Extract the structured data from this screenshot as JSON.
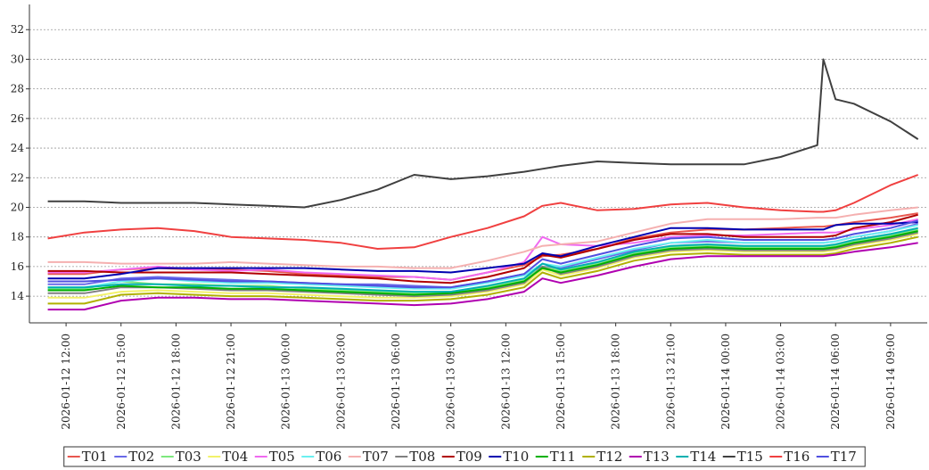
{
  "chart_data": {
    "type": "line",
    "x": [
      "2026-01-12 11:00",
      "2026-01-12 13:00",
      "2026-01-12 15:00",
      "2026-01-12 17:00",
      "2026-01-12 19:00",
      "2026-01-12 21:00",
      "2026-01-12 23:00",
      "2026-01-13 01:00",
      "2026-01-13 03:00",
      "2026-01-13 05:00",
      "2026-01-13 07:00",
      "2026-01-13 09:00",
      "2026-01-13 11:00",
      "2026-01-13 13:00",
      "2026-01-13 14:00",
      "2026-01-13 15:00",
      "2026-01-13 17:00",
      "2026-01-13 19:00",
      "2026-01-13 21:00",
      "2026-01-13 23:00",
      "2026-01-14 01:00",
      "2026-01-14 03:00",
      "2026-01-14 05:00",
      "2026-01-14 05:20",
      "2026-01-14 06:00",
      "2026-01-14 07:00",
      "2026-01-14 09:00",
      "2026-01-14 10:30"
    ],
    "xlim": [
      "2026-01-12 10:00",
      "2026-01-14 11:00"
    ],
    "xticks": [
      "2026-01-12 12:00",
      "2026-01-12 15:00",
      "2026-01-12 18:00",
      "2026-01-12 21:00",
      "2026-01-13 00:00",
      "2026-01-13 03:00",
      "2026-01-13 06:00",
      "2026-01-13 09:00",
      "2026-01-13 12:00",
      "2026-01-13 15:00",
      "2026-01-13 18:00",
      "2026-01-13 21:00",
      "2026-01-14 00:00",
      "2026-01-14 03:00",
      "2026-01-14 06:00",
      "2026-01-14 09:00"
    ],
    "ylim": [
      12.2,
      33.4
    ],
    "yticks": [
      14,
      16,
      18,
      20,
      22,
      24,
      26,
      28,
      30,
      32
    ],
    "grid": true,
    "legend": "bottom",
    "series": [
      {
        "name": "T01",
        "color": "#e8574f",
        "values": [
          15.5,
          15.5,
          15.8,
          15.9,
          15.8,
          15.8,
          15.7,
          15.5,
          15.4,
          15.3,
          15.3,
          15.1,
          15.6,
          16.1,
          16.7,
          16.8,
          17.2,
          17.9,
          18.3,
          18.5,
          18.5,
          18.6,
          18.7,
          18.7,
          18.8,
          19.0,
          19.3,
          19.6
        ]
      },
      {
        "name": "T02",
        "color": "#6a6ae8",
        "values": [
          14.8,
          14.8,
          15.2,
          15.3,
          15.2,
          15.1,
          15.0,
          14.9,
          14.8,
          14.8,
          14.7,
          14.6,
          15.0,
          15.5,
          16.0,
          15.9,
          16.5,
          17.1,
          17.6,
          17.7,
          17.6,
          17.6,
          17.6,
          17.6,
          17.7,
          18.0,
          18.4,
          18.9
        ]
      },
      {
        "name": "T03",
        "color": "#7de87d",
        "values": [
          14.5,
          14.5,
          15.0,
          14.8,
          14.8,
          14.7,
          14.7,
          14.5,
          14.4,
          14.3,
          14.2,
          14.3,
          14.6,
          15.1,
          16.0,
          15.7,
          16.2,
          16.9,
          17.3,
          17.4,
          17.3,
          17.3,
          17.3,
          17.3,
          17.4,
          17.7,
          18.1,
          18.5
        ]
      },
      {
        "name": "T04",
        "color": "#f2f26a",
        "values": [
          13.9,
          13.9,
          14.3,
          14.4,
          14.3,
          14.2,
          14.2,
          14.1,
          14.0,
          13.9,
          13.9,
          14.0,
          14.3,
          14.8,
          15.8,
          15.4,
          15.9,
          16.6,
          17.0,
          17.1,
          17.0,
          17.0,
          17.0,
          17.0,
          17.1,
          17.4,
          17.8,
          18.2
        ]
      },
      {
        "name": "T05",
        "color": "#f06af0",
        "values": [
          15.6,
          15.6,
          15.8,
          16.0,
          15.8,
          15.7,
          15.8,
          15.6,
          15.5,
          15.4,
          15.3,
          15.1,
          15.6,
          16.3,
          18.0,
          17.5,
          17.4,
          17.6,
          18.0,
          18.1,
          18.1,
          18.2,
          18.3,
          18.3,
          18.3,
          18.5,
          18.8,
          19.2
        ]
      },
      {
        "name": "T06",
        "color": "#6af0f0",
        "values": [
          14.6,
          14.6,
          15.0,
          15.2,
          15.0,
          14.9,
          14.9,
          14.8,
          14.7,
          14.6,
          14.5,
          14.5,
          14.9,
          15.4,
          16.2,
          16.0,
          16.6,
          17.2,
          17.6,
          17.8,
          17.6,
          17.6,
          17.6,
          17.6,
          17.7,
          18.0,
          18.4,
          18.8
        ]
      },
      {
        "name": "T07",
        "color": "#f5b0b0",
        "values": [
          16.3,
          16.3,
          16.2,
          16.2,
          16.2,
          16.3,
          16.2,
          16.1,
          16.0,
          16.0,
          15.9,
          15.9,
          16.4,
          17.0,
          17.4,
          17.5,
          17.7,
          18.3,
          18.9,
          19.2,
          19.2,
          19.2,
          19.3,
          19.3,
          19.3,
          19.5,
          19.8,
          20.0
        ]
      },
      {
        "name": "T08",
        "color": "#808080",
        "values": [
          14.2,
          14.2,
          14.6,
          14.6,
          14.5,
          14.4,
          14.4,
          14.3,
          14.2,
          14.1,
          14.0,
          14.1,
          14.4,
          14.9,
          16.0,
          15.5,
          16.0,
          16.7,
          17.1,
          17.2,
          17.1,
          17.1,
          17.1,
          17.1,
          17.2,
          17.5,
          17.9,
          18.3
        ]
      },
      {
        "name": "T09",
        "color": "#b00000",
        "values": [
          15.7,
          15.7,
          15.6,
          15.6,
          15.6,
          15.6,
          15.5,
          15.4,
          15.3,
          15.2,
          15.0,
          14.9,
          15.3,
          15.9,
          16.8,
          16.6,
          17.2,
          17.8,
          18.2,
          18.2,
          18.0,
          18.0,
          18.0,
          18.0,
          18.1,
          18.6,
          19.0,
          19.5
        ]
      },
      {
        "name": "T10",
        "color": "#0000b0",
        "values": [
          15.2,
          15.2,
          15.5,
          15.9,
          15.9,
          15.9,
          15.9,
          15.9,
          15.8,
          15.7,
          15.7,
          15.6,
          15.9,
          16.2,
          16.9,
          16.7,
          17.4,
          18.0,
          18.6,
          18.6,
          18.5,
          18.5,
          18.5,
          18.5,
          18.8,
          18.9,
          18.9,
          19.0
        ]
      },
      {
        "name": "T11",
        "color": "#00b000",
        "values": [
          14.4,
          14.4,
          14.7,
          14.6,
          14.6,
          14.5,
          14.5,
          14.4,
          14.3,
          14.2,
          14.1,
          14.2,
          14.5,
          15.0,
          15.9,
          15.6,
          16.1,
          16.8,
          17.2,
          17.3,
          17.2,
          17.2,
          17.2,
          17.2,
          17.3,
          17.6,
          18.0,
          18.4
        ]
      },
      {
        "name": "T12",
        "color": "#b0b000",
        "values": [
          13.5,
          13.5,
          14.1,
          14.2,
          14.1,
          14.0,
          14.0,
          13.9,
          13.8,
          13.7,
          13.7,
          13.8,
          14.1,
          14.6,
          15.6,
          15.2,
          15.7,
          16.4,
          16.8,
          16.9,
          16.8,
          16.8,
          16.8,
          16.8,
          16.9,
          17.2,
          17.6,
          18.0
        ]
      },
      {
        "name": "T13",
        "color": "#b000b0",
        "values": [
          13.1,
          13.1,
          13.7,
          13.9,
          13.9,
          13.8,
          13.8,
          13.7,
          13.6,
          13.5,
          13.4,
          13.5,
          13.8,
          14.3,
          15.2,
          14.9,
          15.4,
          16.0,
          16.5,
          16.7,
          16.7,
          16.7,
          16.7,
          16.7,
          16.8,
          17.0,
          17.3,
          17.6
        ]
      },
      {
        "name": "T14",
        "color": "#00b0b0",
        "values": [
          14.6,
          14.6,
          14.8,
          14.8,
          14.7,
          14.7,
          14.6,
          14.6,
          14.5,
          14.4,
          14.3,
          14.3,
          14.7,
          15.2,
          16.2,
          15.8,
          16.3,
          17.0,
          17.4,
          17.5,
          17.4,
          17.4,
          17.4,
          17.4,
          17.5,
          17.8,
          18.2,
          18.6
        ]
      },
      {
        "name": "T15",
        "color": "#404040",
        "values": [
          20.4,
          20.4,
          20.3,
          20.3,
          20.3,
          20.2,
          20.1,
          20.0,
          20.5,
          21.2,
          22.2,
          21.9,
          22.1,
          22.4,
          22.6,
          22.8,
          23.1,
          23.0,
          22.9,
          22.9,
          22.9,
          23.4,
          24.2,
          30.0,
          27.3,
          27.0,
          25.8,
          24.6
        ]
      },
      {
        "name": "T16",
        "color": "#f04040",
        "values": [
          17.9,
          18.3,
          18.5,
          18.6,
          18.4,
          18.0,
          17.9,
          17.8,
          17.6,
          17.2,
          17.3,
          18.0,
          18.6,
          19.4,
          20.1,
          20.3,
          19.8,
          19.9,
          20.2,
          20.3,
          20.0,
          19.8,
          19.7,
          19.7,
          19.8,
          20.3,
          21.5,
          22.2
        ]
      },
      {
        "name": "T17",
        "color": "#5050e0",
        "values": [
          15.0,
          15.0,
          15.1,
          15.2,
          15.1,
          15.0,
          15.0,
          14.9,
          14.8,
          14.7,
          14.6,
          14.6,
          15.0,
          15.5,
          16.5,
          16.2,
          16.8,
          17.4,
          17.9,
          18.0,
          17.8,
          17.8,
          17.8,
          17.8,
          17.9,
          18.2,
          18.6,
          19.1
        ]
      }
    ]
  }
}
